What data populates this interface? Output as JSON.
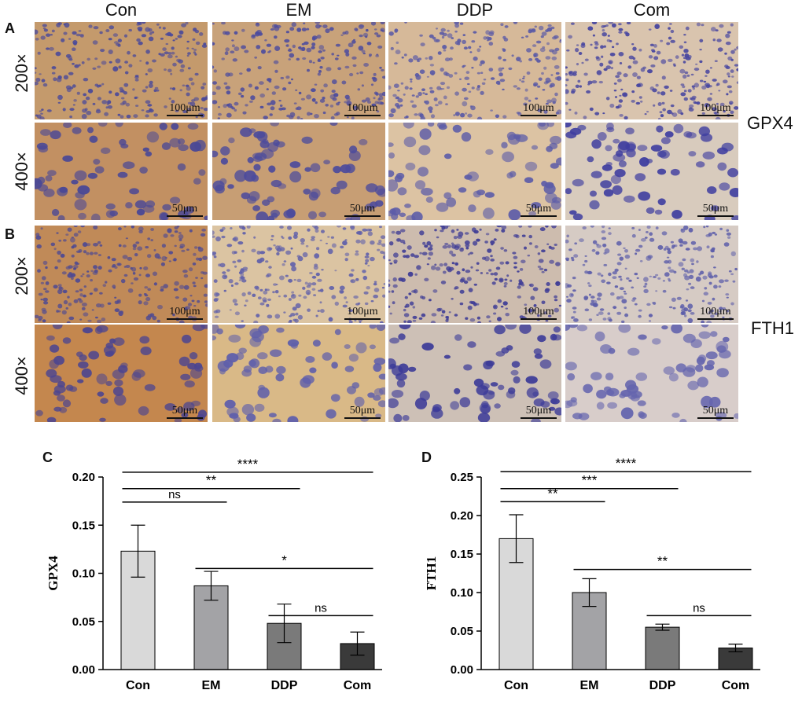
{
  "columns": [
    "Con",
    "EM",
    "DDP",
    "Com"
  ],
  "panels": {
    "A": {
      "letter": "A",
      "marker": "GPX4"
    },
    "B": {
      "letter": "B",
      "marker": "FTH1"
    }
  },
  "magnifications": {
    "low": "200×",
    "high": "400×"
  },
  "scalebars": {
    "low": "100μm",
    "high": "50μm"
  },
  "tissue_tiles": [
    {
      "panel": "A",
      "mag": "low",
      "group": "Con",
      "stain": "#c49a6c",
      "nuclei": "#4b4a9a"
    },
    {
      "panel": "A",
      "mag": "low",
      "group": "EM",
      "stain": "#c8a27a",
      "nuclei": "#4d4c9e"
    },
    {
      "panel": "A",
      "mag": "low",
      "group": "DDP",
      "stain": "#d6b999",
      "nuclei": "#5a5aa6"
    },
    {
      "panel": "A",
      "mag": "low",
      "group": "Com",
      "stain": "#d9c4ae",
      "nuclei": "#4544a0"
    },
    {
      "panel": "A",
      "mag": "high",
      "group": "Con",
      "stain": "#c29062",
      "nuclei": "#4a4896"
    },
    {
      "panel": "A",
      "mag": "high",
      "group": "EM",
      "stain": "#c79e74",
      "nuclei": "#4c4b9c"
    },
    {
      "panel": "A",
      "mag": "high",
      "group": "DDP",
      "stain": "#dcc3a3",
      "nuclei": "#5c5ca8"
    },
    {
      "panel": "A",
      "mag": "high",
      "group": "Com",
      "stain": "#d8cbbd",
      "nuclei": "#3f3ea0"
    },
    {
      "panel": "B",
      "mag": "low",
      "group": "Con",
      "stain": "#c08a58",
      "nuclei": "#4f4a92"
    },
    {
      "panel": "B",
      "mag": "low",
      "group": "EM",
      "stain": "#dbc4a2",
      "nuclei": "#6060aa"
    },
    {
      "panel": "B",
      "mag": "low",
      "group": "DDP",
      "stain": "#cdbcae",
      "nuclei": "#3e3c96"
    },
    {
      "panel": "B",
      "mag": "low",
      "group": "Com",
      "stain": "#d6cbc4",
      "nuclei": "#5d5eaa"
    },
    {
      "panel": "B",
      "mag": "high",
      "group": "Con",
      "stain": "#c4874e",
      "nuclei": "#4c4590"
    },
    {
      "panel": "B",
      "mag": "high",
      "group": "EM",
      "stain": "#d9b987",
      "nuclei": "#5f5fab"
    },
    {
      "panel": "B",
      "mag": "high",
      "group": "DDP",
      "stain": "#cdc0b6",
      "nuclei": "#3b3a98"
    },
    {
      "panel": "B",
      "mag": "high",
      "group": "Com",
      "stain": "#d8cdca",
      "nuclei": "#6565ae"
    }
  ],
  "chart_data": [
    {
      "panel": "C",
      "type": "bar",
      "categories": [
        "Con",
        "EM",
        "DDP",
        "Com"
      ],
      "values": [
        0.123,
        0.087,
        0.048,
        0.027
      ],
      "errors": [
        0.027,
        0.015,
        0.02,
        0.012
      ],
      "bar_colors": [
        "#d9d9d9",
        "#a3a3a6",
        "#7a7a7a",
        "#3a3a3a"
      ],
      "ylabel": "GPX4",
      "xlabel": "",
      "ylim": [
        0,
        0.2
      ],
      "yticks": [
        "0.00",
        "0.05",
        "0.10",
        "0.15",
        "0.20"
      ],
      "ytick_values": [
        0,
        0.05,
        0.1,
        0.15,
        0.2
      ],
      "significance": [
        {
          "from": 0,
          "to": 1,
          "label": "ns",
          "level": 0.174
        },
        {
          "from": 0,
          "to": 2,
          "label": "**",
          "level": 0.188
        },
        {
          "from": 0,
          "to": 3,
          "label": "****",
          "level": 0.205
        },
        {
          "from": 1,
          "to": 3,
          "label": "*",
          "level": 0.105
        },
        {
          "from": 2,
          "to": 3,
          "label": "ns",
          "level": 0.056
        }
      ]
    },
    {
      "panel": "D",
      "type": "bar",
      "categories": [
        "Con",
        "EM",
        "DDP",
        "Com"
      ],
      "values": [
        0.17,
        0.1,
        0.055,
        0.028
      ],
      "errors": [
        0.031,
        0.018,
        0.004,
        0.005
      ],
      "bar_colors": [
        "#d9d9d9",
        "#a3a3a6",
        "#7a7a7a",
        "#3a3a3a"
      ],
      "ylabel": "FTH1",
      "xlabel": "",
      "ylim": [
        0,
        0.25
      ],
      "yticks": [
        "0.00",
        "0.05",
        "0.10",
        "0.15",
        "0.20",
        "0.25"
      ],
      "ytick_values": [
        0,
        0.05,
        0.1,
        0.15,
        0.2,
        0.25
      ],
      "significance": [
        {
          "from": 0,
          "to": 1,
          "label": "**",
          "level": 0.218
        },
        {
          "from": 0,
          "to": 2,
          "label": "***",
          "level": 0.235
        },
        {
          "from": 0,
          "to": 3,
          "label": "****",
          "level": 0.257
        },
        {
          "from": 1,
          "to": 3,
          "label": "**",
          "level": 0.13
        },
        {
          "from": 2,
          "to": 3,
          "label": "ns",
          "level": 0.07
        }
      ]
    }
  ]
}
